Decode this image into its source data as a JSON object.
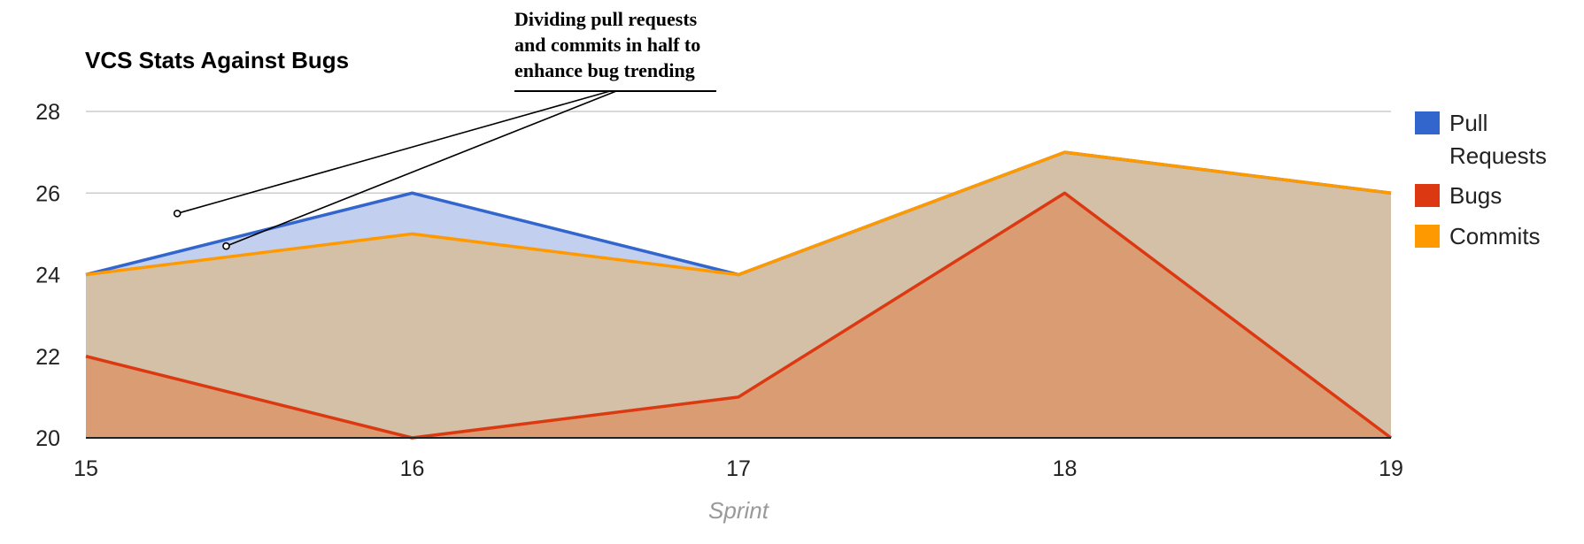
{
  "chart_data": {
    "type": "area",
    "title": "VCS Stats Against Bugs",
    "xlabel": "Sprint",
    "ylabel": "",
    "categories": [
      "15",
      "16",
      "17",
      "18",
      "19"
    ],
    "ylim": [
      20,
      28
    ],
    "yticks": [
      "20",
      "22",
      "24",
      "26",
      "28"
    ],
    "grid": true,
    "legend_position": "right",
    "series": [
      {
        "name": "Pull Requests",
        "values": [
          24,
          26,
          24,
          27,
          26
        ],
        "color": "#3366cc",
        "fill": "#c3cfee"
      },
      {
        "name": "Bugs",
        "values": [
          22,
          20,
          21,
          26,
          20
        ],
        "color": "#dc3912",
        "fill": "#d99c73"
      },
      {
        "name": "Commits",
        "values": [
          24,
          25,
          24,
          27,
          26
        ],
        "color": "#ff9900",
        "fill": "#d4c0a6"
      }
    ],
    "annotation": {
      "lines": [
        "Dividing pull requests",
        "and commits in half to",
        "enhance bug trending"
      ],
      "targets": [
        {
          "series": "Pull Requests",
          "x": 15.28,
          "y": 25.5
        },
        {
          "series": "Commits",
          "x": 15.43,
          "y": 24.7
        }
      ]
    }
  },
  "legend": {
    "items": [
      {
        "lines": [
          "Pull",
          "Requests"
        ]
      },
      {
        "lines": [
          "Bugs"
        ]
      },
      {
        "lines": [
          "Commits"
        ]
      }
    ]
  }
}
